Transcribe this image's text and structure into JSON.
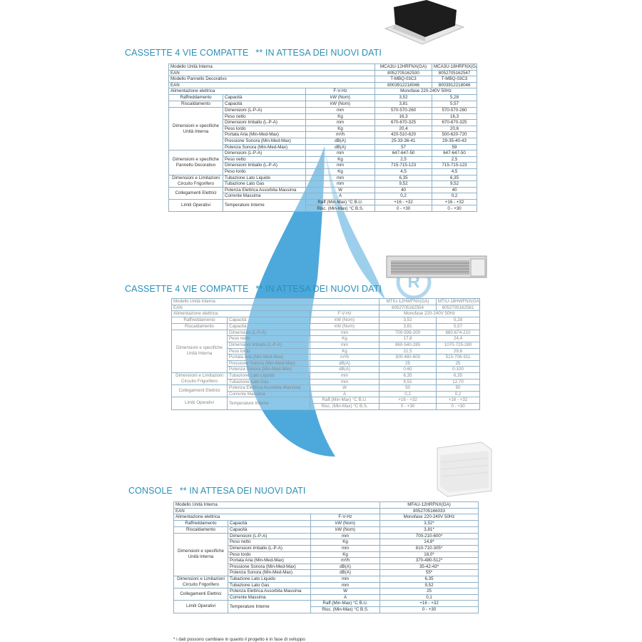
{
  "colors": {
    "title": "#2a8fb8",
    "watermark": "#3aa0d8",
    "border": "#8fb0c4"
  },
  "tables": [
    {
      "title": "CASSETTE 4 VIE COMPATTE",
      "note": "** IN ATTESA DEI NUOVI DATI",
      "image": "cassette-unit-image",
      "header_rows": [
        {
          "label": "Modello Unità Interna",
          "values": [
            "MCA3U-12HRFNX(GA)",
            "MCA3U-18HRFNX(GA)"
          ]
        },
        {
          "label": "EAN",
          "values": [
            "8052705162530",
            "8052705162547"
          ]
        },
        {
          "label": "Modello Pannello Decorativo",
          "values": [
            "T-MBQ-03C3",
            "T-MBQ-03C3"
          ]
        },
        {
          "label": "EAN",
          "values": [
            "8003912218046",
            "8003912218046"
          ]
        }
      ],
      "power": {
        "label": "Alimentazione elettrica",
        "unit": "F-V-Hz",
        "value": "Monofase 220-240V 50Hz"
      },
      "groups": [
        {
          "label": "Raffreddamento",
          "rows": [
            {
              "param": "Capacità",
              "unit": "kW  (Nom)",
              "values": [
                "3,52",
                "5,28"
              ]
            }
          ]
        },
        {
          "label": "Riscaldamento",
          "rows": [
            {
              "param": "Capacità",
              "unit": "kW  (Nom)",
              "values": [
                "3,81",
                "5,57"
              ]
            }
          ]
        },
        {
          "label": "Dimensioni e specifiche Unità Interna",
          "rows": [
            {
              "param": "Dimensioni (L-P-A)",
              "unit": "mm",
              "values": [
                "570-570-260",
                "570-570-260"
              ]
            },
            {
              "param": "Peso netto",
              "unit": "Kg",
              "values": [
                "16,3",
                "16,3"
              ]
            },
            {
              "param": "Dimensioni Imballo (L-P-A)",
              "unit": "mm",
              "values": [
                "670-670-325",
                "670-670-325"
              ]
            },
            {
              "param": "Peso lordo",
              "unit": "Kg",
              "values": [
                "20,4",
                "20,6"
              ]
            },
            {
              "param": "Portata Aria (Min-Med-Max)",
              "unit": "m³/h",
              "values": [
                "420-510-620",
                "500-620-720"
              ]
            },
            {
              "param": "Pressione Sonora (Min-Med-Max)",
              "unit": "dB(A)",
              "values": [
                "25-33-36-41",
                "29-35-40-43"
              ],
              "two": true
            },
            {
              "param": "Potenza Sonora (Min-Med-Max)",
              "unit": "dB(A)",
              "values": [
                "57",
                "59"
              ],
              "two": true
            }
          ]
        },
        {
          "label": "Dimensioni e specifiche Pannello Decorativo",
          "rows": [
            {
              "param": "Dimensioni (L-P-A)",
              "unit": "mm",
              "values": [
                "647-647-50",
                "647-647-50"
              ]
            },
            {
              "param": "Peso netto",
              "unit": "Kg",
              "values": [
                "2,5",
                "2,5"
              ]
            },
            {
              "param": "Dimensioni Imballo (L-P-A)",
              "unit": "mm",
              "values": [
                "715-715-123",
                "715-715-123"
              ]
            },
            {
              "param": "Peso lordo",
              "unit": "Kg",
              "values": [
                "4,5",
                "4,5"
              ]
            }
          ]
        },
        {
          "label": "Dimensioni e Limitazioni Circuito Frigorifero",
          "rows": [
            {
              "param": "Tubazione Lato Liquido",
              "unit": "mm",
              "values": [
                "6,35",
                "6,35"
              ]
            },
            {
              "param": "Tubazione Lato Gas",
              "unit": "mm",
              "values": [
                "9,52",
                "9,52"
              ]
            }
          ]
        },
        {
          "label": "Collegamenti Elettrici",
          "rows": [
            {
              "param": "Potenza Elettrica Assorbita Massima",
              "unit": "W",
              "values": [
                "40",
                "40"
              ]
            },
            {
              "param": "Corrente Massima",
              "unit": "A",
              "values": [
                "0,2",
                "0,2"
              ]
            }
          ]
        },
        {
          "label": "Limiti Operativi",
          "rows": [
            {
              "param": "Temperature Interne",
              "unit": "Raff.(Min-Max) °C B.U.",
              "values": [
                "+16 - +32",
                "+16 - +32"
              ]
            },
            {
              "param": null,
              "unit": "Risc. (Min-Max) °C B.S.",
              "values": [
                "0 - +30",
                "0 - +30"
              ]
            }
          ]
        }
      ]
    },
    {
      "title": "CASSETTE 4 VIE COMPATTE",
      "note": "** IN ATTESA DEI NUOVI DATI",
      "image": "duct-unit-image",
      "header_rows": [
        {
          "label": "Modello Unità Interna",
          "values": [
            "MTIU-12HWFNX(GA)",
            "MTIU-18HWFNX(GA)"
          ]
        },
        {
          "label": "EAN",
          "values": [
            "8052705162554",
            "8052705162561"
          ]
        }
      ],
      "power": {
        "label": "Alimentazione elettrica",
        "unit": "F-V-Hz",
        "value": "Monofase 220-240V 50Hz"
      },
      "groups": [
        {
          "label": "Raffreddamento",
          "rows": [
            {
              "param": "Capacità",
              "unit": "kW  (Nom)",
              "values": [
                "3,52",
                "5,28"
              ]
            }
          ]
        },
        {
          "label": "Riscaldamento",
          "rows": [
            {
              "param": "Capacità",
              "unit": "kW  (Nom)",
              "values": [
                "3,81",
                "5,57"
              ]
            }
          ]
        },
        {
          "label": "Dimensioni e specifiche Unità Interna",
          "rows": [
            {
              "param": "Dimensioni (L-P-A)",
              "unit": "mm",
              "values": [
                "700-506-200",
                "880-674-210"
              ]
            },
            {
              "param": "Peso netto",
              "unit": "Kg",
              "values": [
                "17,8",
                "24,4"
              ]
            },
            {
              "param": "Dimensioni Imballo (L-P-A)",
              "unit": "mm",
              "values": [
                "860-540-285",
                "1070-725-280"
              ]
            },
            {
              "param": "Peso lordo",
              "unit": "Kg",
              "values": [
                "21,5",
                "29,6"
              ]
            },
            {
              "param": "Portata Aria (Min-Med-Max)",
              "unit": "m³/h",
              "values": [
                "300-480-600",
                "515-706-911"
              ]
            },
            {
              "param": "Pressione Sonora (Min-Med-Max)",
              "unit": "dB(A)",
              "values": [
                "25",
                "25"
              ],
              "two": true
            },
            {
              "param": "Potenza Sonora (Min-Med-Max)",
              "unit": "dB(A)",
              "values": [
                "0-60",
                "0-100"
              ],
              "two": true
            }
          ]
        },
        {
          "label": "Dimensioni e Limitazioni Circuito Frigorifero",
          "rows": [
            {
              "param": "Tubazione Lato Liquido",
              "unit": "mm",
              "values": [
                "6,35",
                "6,35"
              ]
            },
            {
              "param": "Tubazione Lato Gas",
              "unit": "mm",
              "values": [
                "9,52",
                "12,70"
              ]
            }
          ]
        },
        {
          "label": "Collegamenti Elettrici",
          "rows": [
            {
              "param": "Potenza Elettrica Assorbita Massima",
              "unit": "W",
              "values": [
                "50",
                "50"
              ]
            },
            {
              "param": "Corrente Massima",
              "unit": "A",
              "values": [
                "0,2",
                "0,2"
              ]
            }
          ]
        },
        {
          "label": "Limiti Operativi",
          "rows": [
            {
              "param": "Temperature Interne",
              "unit": "Raff.(Min-Max) °C B.U.",
              "values": [
                "+16 - +32",
                "+16 - +32"
              ]
            },
            {
              "param": null,
              "unit": "Risc. (Min-Max) °C B.S.",
              "values": [
                "0 - +30",
                "0 - +30"
              ]
            }
          ]
        }
      ]
    },
    {
      "title": "CONSOLE",
      "note": "** IN ATTESA DEI NUOVI DATI",
      "image": "console-unit-image",
      "header_rows": [
        {
          "label": "Modello Unità Interna",
          "values": [
            "MFAU-12HRFNX(GA)"
          ]
        },
        {
          "label": "EAN",
          "values": [
            "8052705166033"
          ]
        }
      ],
      "power": {
        "label": "Alimentazione elettrica",
        "unit": "F-V-Hz",
        "value": "Monofase 220-240V 50Hz"
      },
      "groups": [
        {
          "label": "Raffreddamento",
          "rows": [
            {
              "param": "Capacità",
              "unit": "kW  (Nom)",
              "values": [
                "3,52*"
              ]
            }
          ]
        },
        {
          "label": "Riscaldamento",
          "rows": [
            {
              "param": "Capacità",
              "unit": "kW  (Nom)",
              "values": [
                "3,81*"
              ]
            }
          ]
        },
        {
          "label": "Dimensioni e specifiche Unità Interna",
          "rows": [
            {
              "param": "Dimensioni (L-P-A)",
              "unit": "mm",
              "values": [
                "700-210-600*"
              ]
            },
            {
              "param": "Peso netto",
              "unit": "Kg",
              "values": [
                "14,8*"
              ]
            },
            {
              "param": "Dimensioni Imballo (L-P-A)",
              "unit": "mm",
              "values": [
                "810-710-305*"
              ]
            },
            {
              "param": "Peso lordo",
              "unit": "Kg",
              "values": [
                "18,0*"
              ]
            },
            {
              "param": "Portata Aria (Min-Med-Max)",
              "unit": "m³/h",
              "values": [
                "370-480-512*"
              ]
            },
            {
              "param": "Pressione Sonora (Min-Med-Max)",
              "unit": "dB(A)",
              "values": [
                "35-42-43*"
              ],
              "two": true
            },
            {
              "param": "Potenza Sonora (Min-Med-Max)",
              "unit": "dB(A)",
              "values": [
                "55*"
              ],
              "two": true
            }
          ]
        },
        {
          "label": "Dimensioni e Limitazioni Circuito Frigorifero",
          "rows": [
            {
              "param": "Tubazione Lato Liquido",
              "unit": "mm",
              "values": [
                "6,35"
              ]
            },
            {
              "param": "Tubazione Lato Gas",
              "unit": "mm",
              "values": [
                "9,52"
              ]
            }
          ]
        },
        {
          "label": "Collegamenti Elettrici",
          "rows": [
            {
              "param": "Potenza Elettrica Assorbita Massima",
              "unit": "W",
              "values": [
                "25"
              ]
            },
            {
              "param": "Corrente Massima",
              "unit": "A",
              "values": [
                "0,1"
              ]
            }
          ]
        },
        {
          "label": "Limiti Operativi",
          "rows": [
            {
              "param": "Temperature Interne",
              "unit": "Raff.(Min-Max) °C B.U.",
              "values": [
                "+16 - +32"
              ]
            },
            {
              "param": null,
              "unit": "Risc. (Min-Max) °C B.S.",
              "values": [
                "0 - +30"
              ]
            }
          ]
        }
      ]
    }
  ],
  "footnote": "* i dati possono cambiare in quanto il progetto è in fase di sviluppo"
}
